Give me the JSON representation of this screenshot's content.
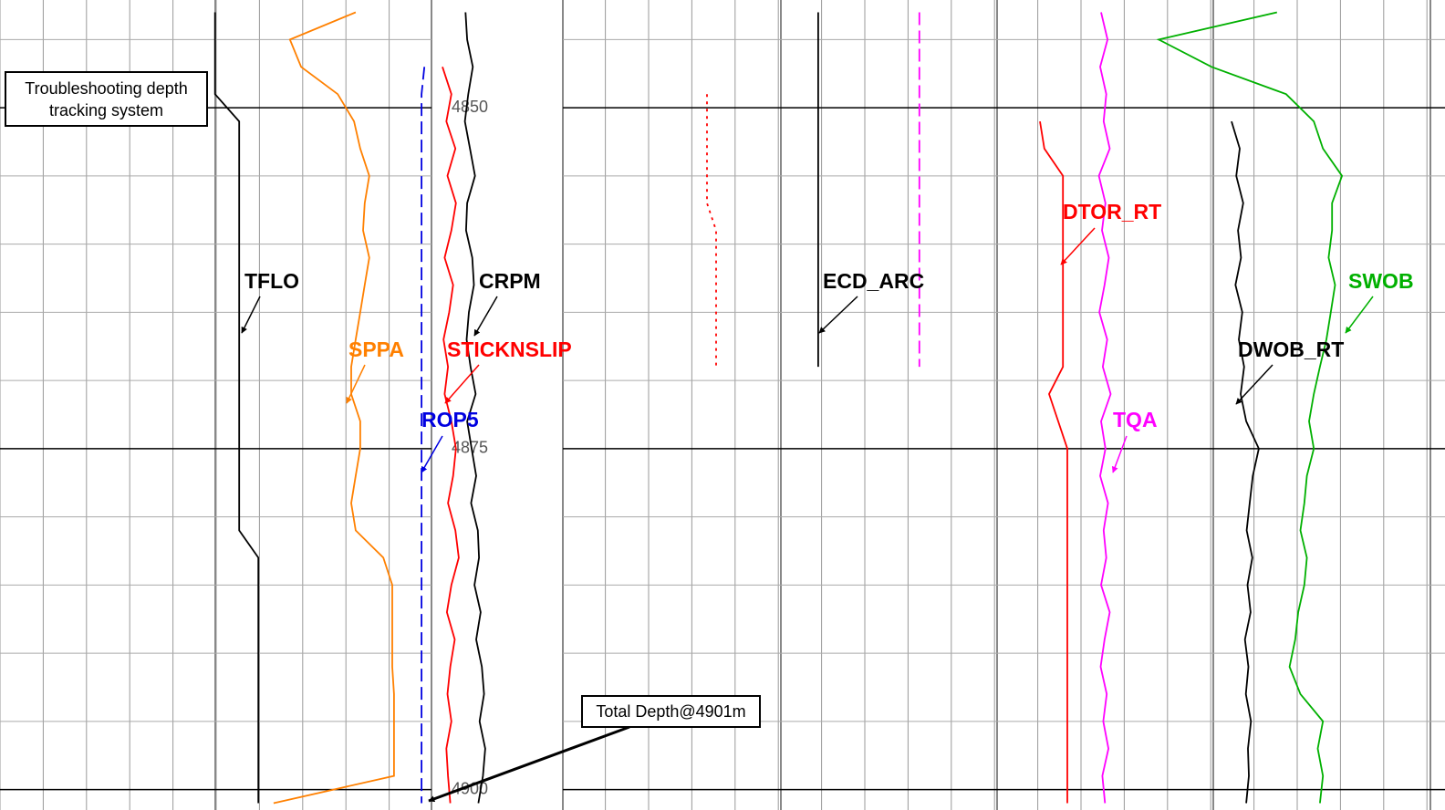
{
  "chart_data": {
    "type": "well-log",
    "depths": [
      4843,
      4845,
      4847,
      4849,
      4851,
      4853,
      4855,
      4857,
      4859,
      4861,
      4863,
      4865,
      4867,
      4869,
      4871,
      4873,
      4875,
      4877,
      4879,
      4881,
      4883,
      4885,
      4887,
      4889,
      4891,
      4893,
      4895,
      4897,
      4899,
      4901
    ],
    "ylim": [
      4842.1,
      4901.5
    ],
    "yticks": [
      4850,
      4875,
      4900
    ],
    "minor_yticks": [
      4845,
      4855,
      4860,
      4865,
      4870,
      4880,
      4885,
      4890,
      4895
    ],
    "xlim": [
      0,
      100
    ],
    "series": [
      {
        "name": "TFLO",
        "color": "#000000",
        "track": 0,
        "style": "solid",
        "values": [
          38.2,
          38.2,
          38.2,
          38.2,
          42.5,
          42.5,
          42.5,
          42.5,
          42.5,
          42.5,
          42.5,
          42.5,
          42.5,
          42.5,
          42.5,
          42.5,
          42.5,
          42.5,
          42.5,
          42.5,
          45.9,
          45.9,
          45.9,
          45.9,
          45.9,
          45.9,
          45.9,
          45.9,
          45.9,
          45.9
        ]
      },
      {
        "name": "SPPA",
        "color": "#ff8000",
        "track": 0,
        "style": "solid",
        "values": [
          63.2,
          51.5,
          53.5,
          60.0,
          62.9,
          64.0,
          65.6,
          64.8,
          64.5,
          65.6,
          64.8,
          64.0,
          63.2,
          62.4,
          62.4,
          64.0,
          64.0,
          63.2,
          62.4,
          63.2,
          68.1,
          69.7,
          69.7,
          69.7,
          69.7,
          70.0,
          70.0,
          70.0,
          70.0,
          48.6
        ]
      },
      {
        "name": "ROP5",
        "color": "#0000e0",
        "track": 0,
        "style": "dashed",
        "values": [
          null,
          null,
          75.4,
          74.9,
          74.9,
          74.9,
          74.9,
          74.9,
          74.9,
          74.9,
          74.9,
          74.9,
          74.9,
          74.9,
          74.9,
          74.9,
          74.9,
          74.9,
          74.9,
          74.9,
          74.9,
          74.9,
          74.9,
          74.9,
          74.9,
          74.9,
          74.9,
          74.9,
          74.9,
          74.9
        ]
      },
      {
        "name": "STICKNSLIP",
        "color": "#ff0000",
        "track": 0,
        "style": "solid",
        "values": [
          null,
          null,
          78.6,
          80.2,
          79.3,
          80.9,
          79.5,
          81.0,
          80.2,
          79.0,
          80.5,
          79.8,
          78.8,
          79.6,
          79.0,
          80.2,
          81.0,
          80.5,
          79.6,
          80.9,
          81.5,
          80.2,
          79.4,
          80.8,
          80.0,
          79.5,
          80.2,
          79.3,
          79.6,
          80.0
        ]
      },
      {
        "name": "CRPM",
        "color": "#000000",
        "track": 0,
        "style": "solid",
        "values": [
          82.7,
          83.0,
          84.0,
          83.2,
          82.6,
          83.5,
          84.4,
          83.0,
          82.8,
          83.9,
          84.2,
          83.3,
          82.9,
          83.6,
          84.5,
          83.0,
          83.8,
          84.6,
          83.7,
          84.9,
          85.1,
          84.3,
          85.4,
          84.6,
          85.6,
          86.0,
          85.2,
          86.2,
          85.8,
          85.0
        ]
      },
      {
        "name": "ECD_ARC",
        "color": "#000000",
        "track": 1,
        "style": "solid",
        "values": [
          58.8,
          58.8,
          58.8,
          58.8,
          58.8,
          58.8,
          58.8,
          58.8,
          58.8,
          58.8,
          58.8,
          58.8,
          58.8,
          58.8,
          null,
          null,
          null,
          null,
          null,
          null,
          null,
          null,
          null,
          null,
          null,
          null,
          null,
          null,
          null,
          null
        ]
      },
      {
        "color": "#ff0000",
        "track": 1,
        "style": "dotted",
        "values": [
          null,
          null,
          null,
          33.2,
          33.2,
          33.2,
          33.2,
          33.2,
          35.3,
          35.3,
          35.3,
          35.3,
          35.3,
          35.3,
          null,
          null,
          null,
          null,
          null,
          null,
          null,
          null,
          null,
          null,
          null,
          null,
          null,
          null,
          null,
          null
        ]
      },
      {
        "color": "#ff00ff",
        "track": 1,
        "style": "dashed",
        "values": [
          82.1,
          82.1,
          82.1,
          82.1,
          82.1,
          82.1,
          82.1,
          82.1,
          82.1,
          82.1,
          82.1,
          82.1,
          82.1,
          82.1,
          null,
          null,
          null,
          null,
          null,
          null,
          null,
          null,
          null,
          null,
          null,
          null,
          null,
          null,
          null,
          null
        ]
      },
      {
        "name": "DTOR_RT",
        "color": "#ff0000",
        "track": 2,
        "style": "solid",
        "values": [
          null,
          null,
          null,
          null,
          9.9,
          10.9,
          15.2,
          15.2,
          15.2,
          15.2,
          15.2,
          15.2,
          15.2,
          15.2,
          12.0,
          14.1,
          16.2,
          16.2,
          16.2,
          16.2,
          16.2,
          16.2,
          16.2,
          16.2,
          16.2,
          16.2,
          16.2,
          16.2,
          16.2,
          16.2
        ]
      },
      {
        "name": "TQA",
        "color": "#ff00ff",
        "track": 2,
        "style": "solid",
        "values": [
          24.0,
          25.5,
          23.8,
          25.2,
          24.6,
          26.0,
          23.5,
          25.0,
          24.2,
          25.8,
          24.8,
          23.6,
          25.4,
          24.4,
          26.2,
          24.0,
          25.0,
          23.8,
          25.6,
          24.6,
          25.2,
          24.0,
          26.0,
          24.8,
          23.9,
          25.3,
          24.5,
          25.7,
          24.3,
          24.9
        ]
      },
      {
        "name": "DWOB_RT",
        "color": "#000000",
        "track": 2,
        "style": "solid",
        "values": [
          null,
          null,
          null,
          null,
          54.1,
          56.0,
          55.2,
          56.8,
          55.6,
          56.3,
          55.0,
          56.6,
          55.8,
          57.0,
          56.2,
          57.5,
          60.4,
          59.0,
          58.3,
          57.6,
          58.9,
          57.8,
          58.5,
          57.2,
          58.0,
          57.4,
          58.6,
          57.9,
          58.1,
          57.5
        ]
      },
      {
        "name": "SWOB",
        "color": "#00b000",
        "track": 2,
        "style": "solid",
        "values": [
          64.6,
          37.3,
          49.5,
          66.7,
          73.1,
          75.2,
          79.6,
          77.3,
          77.3,
          76.5,
          78.0,
          77.0,
          76.0,
          74.5,
          73.1,
          72.0,
          73.1,
          71.5,
          70.9,
          70.0,
          71.5,
          70.9,
          69.5,
          68.8,
          67.5,
          70.0,
          75.2,
          74.0,
          75.2,
          74.5
        ]
      }
    ],
    "annotations": [
      {
        "text": "Troubleshooting depth tracking system"
      },
      {
        "text": "Total Depth@4901m"
      }
    ]
  }
}
